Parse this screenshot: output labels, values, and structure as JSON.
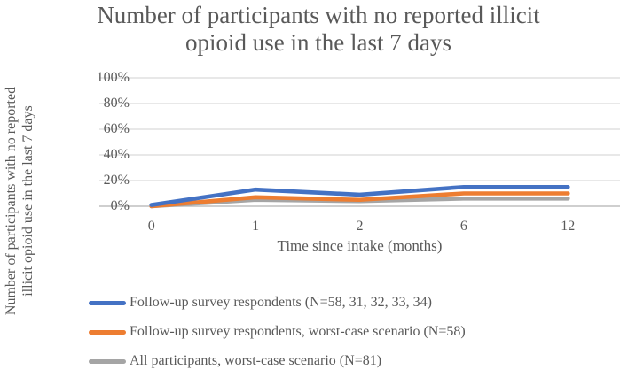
{
  "title": {
    "line1": "Number of participants with no reported illicit",
    "line2": "opioid use in the last 7 days"
  },
  "y_axis": {
    "title_line1": "Number of participants with no reported",
    "title_line2": "illicit opioid use in the last 7 days",
    "ticks": [
      "0%",
      "20%",
      "40%",
      "60%",
      "80%",
      "100%"
    ]
  },
  "x_axis": {
    "title": "Time since intake (months)"
  },
  "colors": {
    "grid": "#D9D9D9",
    "axis": "#BFBFBF",
    "text": "#595959"
  },
  "chart_data": {
    "type": "line",
    "title": "Number of participants with no reported illicit opioid use in the last 7 days",
    "xlabel": "Time since intake (months)",
    "ylabel": "Number of participants with no reported illicit opioid use in the last 7 days",
    "categories": [
      "0",
      "1",
      "2",
      "6",
      "12"
    ],
    "series": [
      {
        "name": "Follow-up survey respondents (N=58, 31, 32, 33, 34)",
        "color": "#4472C4",
        "values": [
          1,
          13,
          9,
          15,
          15
        ]
      },
      {
        "name": "Follow-up survey respondents, worst-case scenario (N=58)",
        "color": "#ED7D31",
        "values": [
          0,
          7,
          5,
          10,
          10
        ]
      },
      {
        "name": "All participants, worst-case scenario (N=81)",
        "color": "#A5A5A5",
        "values": [
          0,
          5,
          4,
          6,
          6
        ]
      }
    ],
    "ylim": [
      0,
      100
    ],
    "y_tick_step": 20,
    "y_tick_format": "percent",
    "grid": true,
    "legend_position": "bottom-left"
  }
}
